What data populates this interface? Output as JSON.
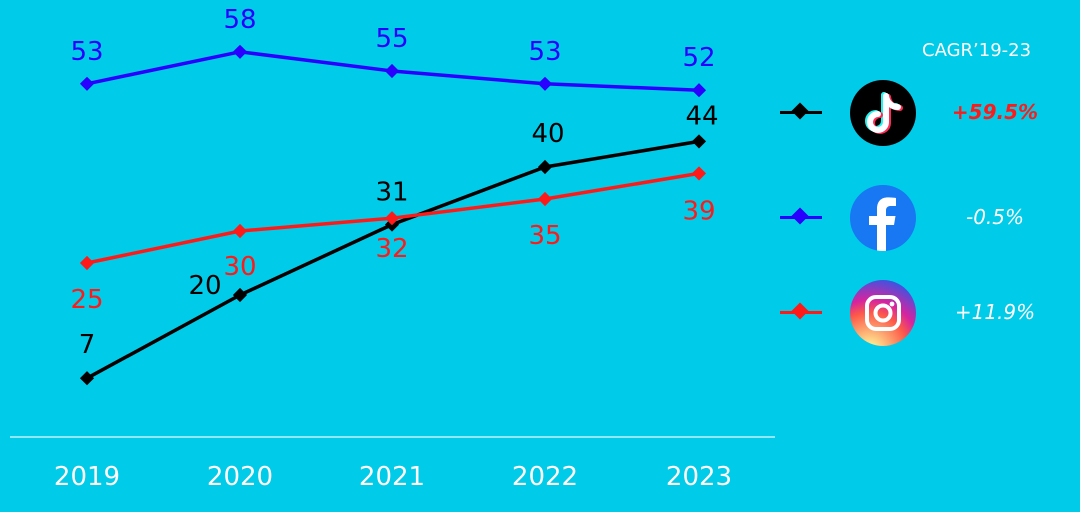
{
  "chart_data": {
    "type": "line",
    "x": [
      "2019",
      "2020",
      "2021",
      "2022",
      "2023"
    ],
    "ylim": [
      0,
      65
    ],
    "grid": false,
    "series": [
      {
        "key": "facebook",
        "color": "#2a00ff",
        "values": [
          53,
          58,
          55,
          53,
          52
        ],
        "labels": [
          "53",
          "58",
          "55",
          "53",
          "52"
        ]
      },
      {
        "key": "tiktok",
        "color": "#000000",
        "values": [
          7,
          20,
          31,
          40,
          44
        ],
        "labels": [
          "7",
          "20",
          "31",
          "40",
          "44"
        ]
      },
      {
        "key": "instagram",
        "color": "#ff1a1a",
        "values": [
          25,
          30,
          32,
          35,
          39
        ],
        "labels": [
          "25",
          "30",
          "32",
          "35",
          "39"
        ]
      }
    ]
  },
  "legend": {
    "title": "CAGR’19-23",
    "items": [
      {
        "platform": "tiktok",
        "icon": "tiktok-logo-icon",
        "color": "#000000",
        "cagr": "+59.5%",
        "highlight": true
      },
      {
        "platform": "facebook",
        "icon": "facebook-logo-icon",
        "color": "#2a00ff",
        "cagr": "-0.5%",
        "highlight": false
      },
      {
        "platform": "instagram",
        "icon": "instagram-logo-icon",
        "color": "#ff1a1a",
        "cagr": "+11.9%",
        "highlight": false
      }
    ]
  },
  "colors": {
    "background": "#00cbe8",
    "axis": "#bff2fa",
    "tick_text": "#ffffff"
  }
}
